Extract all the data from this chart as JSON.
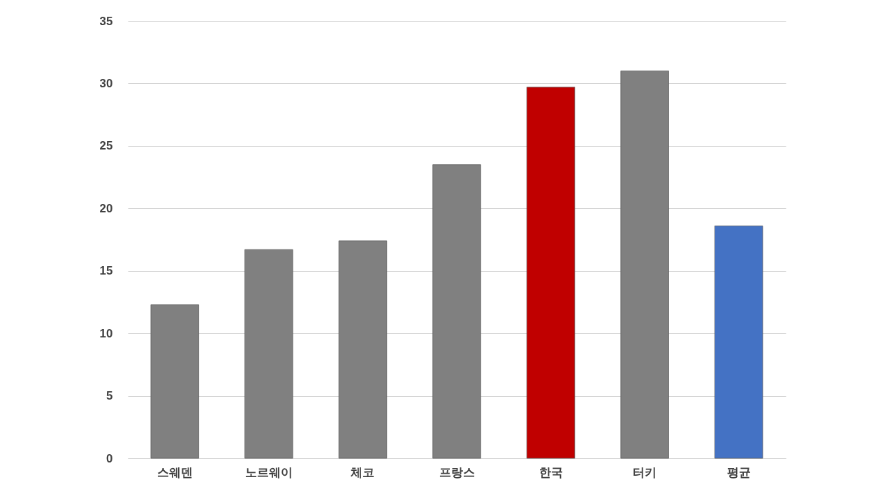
{
  "chart_data": {
    "type": "bar",
    "categories": [
      "스웨덴",
      "노르웨이",
      "체코",
      "프랑스",
      "한국",
      "터키",
      "평균"
    ],
    "values": [
      12.3,
      16.7,
      17.4,
      23.5,
      29.7,
      31.0,
      18.6
    ],
    "colors": [
      "#808080",
      "#808080",
      "#808080",
      "#808080",
      "#c00000",
      "#808080",
      "#4472c4"
    ],
    "ylim": [
      0,
      35
    ],
    "yticks": [
      0,
      5,
      10,
      15,
      20,
      25,
      30,
      35
    ],
    "grid": "y"
  }
}
